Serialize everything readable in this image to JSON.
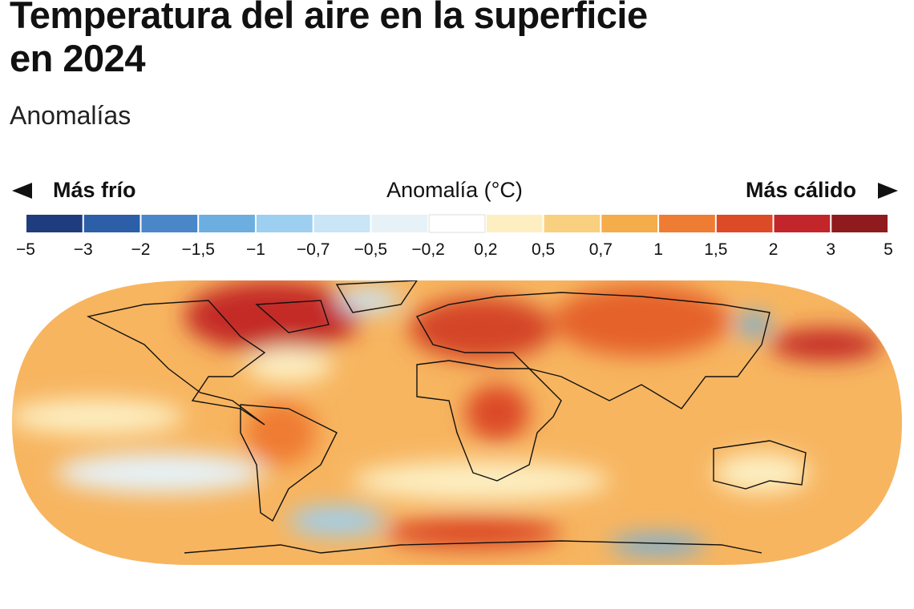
{
  "title": "Temperatura del aire en la superficie en 2024",
  "subtitle": "Anomalías",
  "legend": {
    "left_label": "Más frío",
    "center_label": "Anomalía (°C)",
    "right_label": "Más cálido",
    "colors": [
      "#1f3c7e",
      "#2d5fa8",
      "#4a87c9",
      "#6caee0",
      "#9dcff0",
      "#c9e5f6",
      "#e6f2f8",
      "#ffffff",
      "#fdefc2",
      "#f9d07f",
      "#f5ac4a",
      "#ef7c33",
      "#dc4a27",
      "#c2262a",
      "#8f1b1e"
    ],
    "ticks": [
      {
        "value": -5,
        "label": "−5"
      },
      {
        "value": -3,
        "label": "−3"
      },
      {
        "value": -2,
        "label": "−2"
      },
      {
        "value": -1.5,
        "label": "−1,5"
      },
      {
        "value": -1,
        "label": "−1"
      },
      {
        "value": -0.7,
        "label": "−0,7"
      },
      {
        "value": -0.5,
        "label": "−0,5"
      },
      {
        "value": -0.2,
        "label": "−0,2"
      },
      {
        "value": 0.2,
        "label": "0,2"
      },
      {
        "value": 0.5,
        "label": "0,5"
      },
      {
        "value": 0.7,
        "label": "0,7"
      },
      {
        "value": 1,
        "label": "1"
      },
      {
        "value": 1.5,
        "label": "1,5"
      },
      {
        "value": 2,
        "label": "2"
      },
      {
        "value": 3,
        "label": "3"
      },
      {
        "value": 5,
        "label": "5"
      }
    ]
  }
}
